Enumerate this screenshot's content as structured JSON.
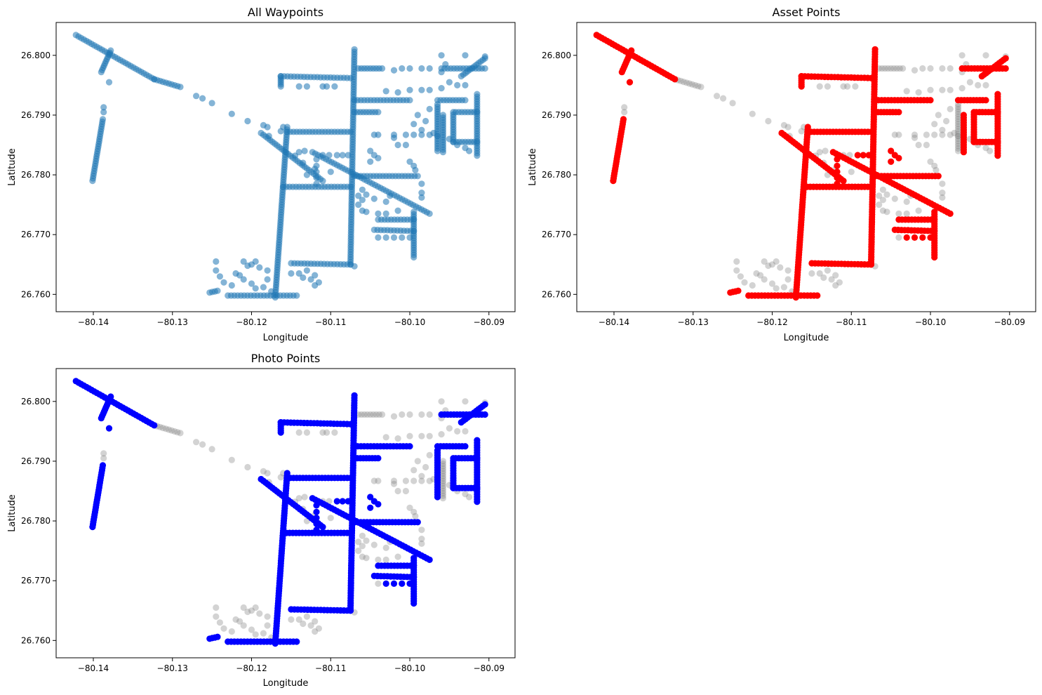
{
  "figure": {
    "panels": [
      {
        "id": "all-waypoints",
        "title": "All Waypoints",
        "xlabel": "Longitude",
        "ylabel": "Latitude",
        "highlight_color": "#1f77b4",
        "highlight_alpha": 0.55,
        "mode": "all"
      },
      {
        "id": "asset-points",
        "title": "Asset Points",
        "xlabel": "Longitude",
        "ylabel": "Latitude",
        "highlight_color": "#ff0000",
        "highlight_alpha": 1.0,
        "mode": "asset"
      },
      {
        "id": "photo-points",
        "title": "Photo Points",
        "xlabel": "Longitude",
        "ylabel": "Latitude",
        "highlight_color": "#0000ff",
        "highlight_alpha": 1.0,
        "mode": "photo"
      }
    ],
    "background_color": "#808080",
    "background_alpha": 0.35
  },
  "chart_data": {
    "type": "scatter",
    "xlim": [
      -80.1447,
      -80.0867
    ],
    "ylim": [
      26.7571,
      26.8055
    ],
    "x_ticks": [
      -80.14,
      -80.13,
      -80.12,
      -80.11,
      -80.1,
      -80.09
    ],
    "x_tick_labels": [
      "−80.14",
      "−80.13",
      "−80.12",
      "−80.11",
      "−80.10",
      "−80.09"
    ],
    "y_ticks": [
      26.76,
      26.77,
      26.78,
      26.79,
      26.8
    ],
    "y_tick_labels": [
      "26.760",
      "26.770",
      "26.780",
      "26.790",
      "26.800"
    ],
    "grid": false,
    "segments": [
      {
        "from": [
          -80.1422,
          26.8034
        ],
        "to": [
          -80.1323,
          26.796
        ],
        "asset": true,
        "photo": true
      },
      {
        "from": [
          -80.1323,
          26.796
        ],
        "to": [
          -80.129,
          26.7947
        ],
        "asset": false,
        "photo": false
      },
      {
        "from": [
          -80.1378,
          26.8008
        ],
        "to": [
          -80.139,
          26.7972
        ],
        "asset": true,
        "photo": true
      },
      {
        "from": [
          -80.1388,
          26.7893
        ],
        "to": [
          -80.1401,
          26.779
        ],
        "asset": true,
        "photo": true
      },
      {
        "from": [
          -80.1188,
          26.787
        ],
        "to": [
          -80.111,
          26.779
        ],
        "asset": true,
        "photo": true
      },
      {
        "from": [
          -80.117,
          26.7595
        ],
        "to": [
          -80.1155,
          26.788
        ],
        "asset": true,
        "photo": true
      },
      {
        "from": [
          -80.1155,
          26.7872
        ],
        "to": [
          -80.1075,
          26.7872
        ],
        "asset": true,
        "photo": true
      },
      {
        "from": [
          -80.116,
          26.778
        ],
        "to": [
          -80.1075,
          26.778
        ],
        "asset": true,
        "photo": true
      },
      {
        "from": [
          -80.1163,
          26.7965
        ],
        "to": [
          -80.1075,
          26.7962
        ],
        "asset": true,
        "photo": true
      },
      {
        "from": [
          -80.1163,
          26.7965
        ],
        "to": [
          -80.1163,
          26.7948
        ],
        "asset": true,
        "photo": true
      },
      {
        "from": [
          -80.1075,
          26.765
        ],
        "to": [
          -80.107,
          26.801
        ],
        "asset": true,
        "photo": true
      },
      {
        "from": [
          -80.115,
          26.7652
        ],
        "to": [
          -80.1075,
          26.765
        ],
        "asset": true,
        "photo": true
      },
      {
        "from": [
          -80.123,
          26.7598
        ],
        "to": [
          -80.1143,
          26.7598
        ],
        "asset": true,
        "photo": true
      },
      {
        "from": [
          -80.1253,
          26.7603
        ],
        "to": [
          -80.1243,
          26.7606
        ],
        "asset": true,
        "photo": true
      },
      {
        "from": [
          -80.1123,
          26.7838
        ],
        "to": [
          -80.0975,
          26.7735
        ],
        "asset": true,
        "photo": true
      },
      {
        "from": [
          -80.107,
          26.7925
        ],
        "to": [
          -80.1,
          26.7925
        ],
        "asset": true,
        "photo": true
      },
      {
        "from": [
          -80.107,
          26.7905
        ],
        "to": [
          -80.104,
          26.7905
        ],
        "asset": true,
        "photo": true
      },
      {
        "from": [
          -80.107,
          26.7798
        ],
        "to": [
          -80.099,
          26.7798
        ],
        "asset": true,
        "photo": true
      },
      {
        "from": [
          -80.104,
          26.7725
        ],
        "to": [
          -80.0995,
          26.7725
        ],
        "asset": true,
        "photo": true
      },
      {
        "from": [
          -80.0995,
          26.7738
        ],
        "to": [
          -80.0995,
          26.7662
        ],
        "asset": true,
        "photo": true
      },
      {
        "from": [
          -80.1045,
          26.7708
        ],
        "to": [
          -80.0995,
          26.7706
        ],
        "asset": true,
        "photo": true
      },
      {
        "from": [
          -80.096,
          26.7978
        ],
        "to": [
          -80.0905,
          26.7978
        ],
        "asset": true,
        "photo": true
      },
      {
        "from": [
          -80.0935,
          26.7965
        ],
        "to": [
          -80.0905,
          26.7995
        ],
        "asset": true,
        "photo": true
      },
      {
        "from": [
          -80.0915,
          26.7935
        ],
        "to": [
          -80.0915,
          26.7832
        ],
        "asset": true,
        "photo": true
      },
      {
        "from": [
          -80.0965,
          26.7925
        ],
        "to": [
          -80.093,
          26.7925
        ],
        "asset": true,
        "photo": true
      },
      {
        "from": [
          -80.0958,
          26.79
        ],
        "to": [
          -80.0958,
          26.7838
        ],
        "asset": true,
        "photo": false
      },
      {
        "from": [
          -80.0942,
          26.7905
        ],
        "to": [
          -80.0915,
          26.7905
        ],
        "asset": true,
        "photo": true
      },
      {
        "from": [
          -80.0945,
          26.7855
        ],
        "to": [
          -80.0915,
          26.7855
        ],
        "asset": true,
        "photo": true
      },
      {
        "from": [
          -80.0945,
          26.7905
        ],
        "to": [
          -80.0945,
          26.7855
        ],
        "asset": true,
        "photo": true
      },
      {
        "from": [
          -80.0965,
          26.7918
        ],
        "to": [
          -80.0965,
          26.784
        ],
        "asset": false,
        "photo": true
      },
      {
        "from": [
          -80.1065,
          26.7978
        ],
        "to": [
          -80.1035,
          26.7978
        ],
        "asset": false,
        "photo": false
      }
    ],
    "scatter_points": [
      [
        -80.138,
        26.7955,
        1,
        1
      ],
      [
        -80.1387,
        26.7913,
        0,
        0
      ],
      [
        -80.1387,
        26.7905,
        0,
        0
      ],
      [
        -80.127,
        26.7932,
        0,
        0
      ],
      [
        -80.1262,
        26.7928,
        0,
        0
      ],
      [
        -80.125,
        26.792,
        0,
        0
      ],
      [
        -80.1225,
        26.7902,
        0,
        0
      ],
      [
        -80.1205,
        26.789,
        0,
        0
      ],
      [
        -80.1185,
        26.7883,
        0,
        0
      ],
      [
        -80.118,
        26.788,
        0,
        0
      ],
      [
        -80.1178,
        26.7865,
        0,
        0
      ],
      [
        -80.1163,
        26.7873,
        0,
        0
      ],
      [
        -80.116,
        26.788,
        0,
        0
      ],
      [
        -80.1145,
        26.7832,
        0,
        0
      ],
      [
        -80.114,
        26.7838,
        0,
        0
      ],
      [
        -80.1133,
        26.784,
        0,
        0
      ],
      [
        -80.1135,
        26.782,
        0,
        0
      ],
      [
        -80.113,
        26.78,
        0,
        0
      ],
      [
        -80.1118,
        26.7826,
        1,
        1
      ],
      [
        -80.1118,
        26.7815,
        1,
        1
      ],
      [
        -80.1118,
        26.7805,
        1,
        1
      ],
      [
        -80.1118,
        26.7795,
        1,
        1
      ],
      [
        -80.1118,
        26.7785,
        1,
        1
      ],
      [
        -80.111,
        26.7833,
        0,
        0
      ],
      [
        -80.1102,
        26.7833,
        0,
        0
      ],
      [
        -80.1092,
        26.7833,
        1,
        1
      ],
      [
        -80.1085,
        26.7833,
        1,
        1
      ],
      [
        -80.1078,
        26.7833,
        1,
        1
      ],
      [
        -80.112,
        26.781,
        0,
        0
      ],
      [
        -80.11,
        26.7805,
        0,
        0
      ],
      [
        -80.105,
        26.784,
        1,
        1
      ],
      [
        -80.1045,
        26.7833,
        1,
        1
      ],
      [
        -80.104,
        26.7828,
        1,
        1
      ],
      [
        -80.105,
        26.7822,
        1,
        1
      ],
      [
        -80.1065,
        26.7765,
        0,
        0
      ],
      [
        -80.106,
        26.7758,
        0,
        0
      ],
      [
        -80.106,
        26.7775,
        0,
        0
      ],
      [
        -80.1055,
        26.7767,
        0,
        0
      ],
      [
        -80.1045,
        26.776,
        0,
        0
      ],
      [
        -80.103,
        26.7755,
        0,
        0
      ],
      [
        -80.1025,
        26.7765,
        0,
        0
      ],
      [
        -80.106,
        26.774,
        0,
        0
      ],
      [
        -80.1055,
        26.7738,
        0,
        0
      ],
      [
        -80.104,
        26.7735,
        0,
        0
      ],
      [
        -80.103,
        26.7735,
        0,
        0
      ],
      [
        -80.1015,
        26.774,
        0,
        0
      ],
      [
        -80.1065,
        26.775,
        0,
        0
      ],
      [
        -80.1,
        26.7822,
        0,
        0
      ],
      [
        -80.0995,
        26.7815,
        0,
        0
      ],
      [
        -80.0993,
        26.7808,
        0,
        0
      ],
      [
        -80.0985,
        26.7785,
        0,
        0
      ],
      [
        -80.0985,
        26.777,
        0,
        0
      ],
      [
        -80.0985,
        26.7762,
        0,
        0
      ],
      [
        -80.103,
        26.7695,
        1,
        1
      ],
      [
        -80.102,
        26.7695,
        1,
        1
      ],
      [
        -80.101,
        26.7695,
        1,
        1
      ],
      [
        -80.1,
        26.7695,
        1,
        1
      ],
      [
        -80.104,
        26.7695,
        0,
        0
      ],
      [
        -80.107,
        26.7647,
        0,
        0
      ],
      [
        -80.1045,
        26.7867,
        0,
        0
      ],
      [
        -80.104,
        26.7867,
        0,
        0
      ],
      [
        -80.102,
        26.7867,
        0,
        0
      ],
      [
        -80.1005,
        26.7867,
        0,
        0
      ],
      [
        -80.0995,
        26.7867,
        0,
        0
      ],
      [
        -80.0985,
        26.7867,
        0,
        0
      ],
      [
        -80.0975,
        26.7867,
        0,
        0
      ],
      [
        -80.1015,
        26.785,
        0,
        0
      ],
      [
        -80.1005,
        26.785,
        0,
        0
      ],
      [
        -80.102,
        26.7862,
        0,
        0
      ],
      [
        -80.103,
        26.794,
        0,
        0
      ],
      [
        -80.1015,
        26.7938,
        0,
        0
      ],
      [
        -80.1,
        26.7942,
        0,
        0
      ],
      [
        -80.0985,
        26.7942,
        0,
        0
      ],
      [
        -80.0975,
        26.7942,
        0,
        0
      ],
      [
        -80.096,
        26.7945,
        0,
        0
      ],
      [
        -80.102,
        26.7975,
        0,
        0
      ],
      [
        -80.101,
        26.7978,
        0,
        0
      ],
      [
        -80.1,
        26.7978,
        0,
        0
      ],
      [
        -80.0985,
        26.7978,
        0,
        0
      ],
      [
        -80.0975,
        26.7978,
        0,
        0
      ],
      [
        -80.0955,
        26.7985,
        0,
        0
      ],
      [
        -80.096,
        26.7972,
        0,
        0
      ],
      [
        -80.095,
        26.7955,
        0,
        0
      ],
      [
        -80.094,
        26.795,
        0,
        0
      ],
      [
        -80.093,
        26.795,
        0,
        0
      ],
      [
        -80.099,
        26.79,
        0,
        0
      ],
      [
        -80.0995,
        26.7885,
        0,
        0
      ],
      [
        -80.0985,
        26.7875,
        0,
        0
      ],
      [
        -80.098,
        26.789,
        0,
        0
      ],
      [
        -80.0975,
        26.791,
        0,
        0
      ],
      [
        -80.097,
        26.787,
        0,
        0
      ],
      [
        -80.0965,
        26.7865,
        0,
        0
      ],
      [
        -80.095,
        26.786,
        0,
        0
      ],
      [
        -80.094,
        26.785,
        0,
        0
      ],
      [
        -80.093,
        26.7845,
        0,
        0
      ],
      [
        -80.0925,
        26.784,
        0,
        0
      ],
      [
        -80.096,
        26.8,
        0,
        0
      ],
      [
        -80.093,
        26.8,
        0,
        0
      ],
      [
        -80.0905,
        26.7998,
        0,
        0
      ],
      [
        -80.114,
        26.7948,
        0,
        0
      ],
      [
        -80.113,
        26.7948,
        0,
        0
      ],
      [
        -80.1105,
        26.7948,
        0,
        0
      ],
      [
        -80.1095,
        26.7948,
        0,
        0
      ],
      [
        -80.111,
        26.7948,
        0,
        0
      ],
      [
        -80.1245,
        26.7655,
        0,
        0
      ],
      [
        -80.1245,
        26.764,
        0,
        0
      ],
      [
        -80.124,
        26.763,
        0,
        0
      ],
      [
        -80.1235,
        26.762,
        0,
        0
      ],
      [
        -80.1225,
        26.7615,
        0,
        0
      ],
      [
        -80.122,
        26.7635,
        0,
        0
      ],
      [
        -80.1215,
        26.7632,
        0,
        0
      ],
      [
        -80.121,
        26.7625,
        0,
        0
      ],
      [
        -80.12,
        26.7618,
        0,
        0
      ],
      [
        -80.1195,
        26.761,
        0,
        0
      ],
      [
        -80.121,
        26.7655,
        0,
        0
      ],
      [
        -80.1205,
        26.7648,
        0,
        0
      ],
      [
        -80.12,
        26.765,
        0,
        0
      ],
      [
        -80.1195,
        26.7655,
        0,
        0
      ],
      [
        -80.119,
        26.7645,
        0,
        0
      ],
      [
        -80.118,
        26.764,
        0,
        0
      ],
      [
        -80.118,
        26.7625,
        0,
        0
      ],
      [
        -80.1185,
        26.7612,
        0,
        0
      ],
      [
        -80.1175,
        26.7605,
        0,
        0
      ],
      [
        -80.115,
        26.7635,
        0,
        0
      ],
      [
        -80.114,
        26.7635,
        0,
        0
      ],
      [
        -80.1135,
        26.7628,
        0,
        0
      ],
      [
        -80.113,
        26.764,
        0,
        0
      ],
      [
        -80.1125,
        26.7625,
        0,
        0
      ],
      [
        -80.112,
        26.7615,
        0,
        0
      ],
      [
        -80.1115,
        26.762,
        0,
        0
      ],
      [
        -80.112,
        26.7632,
        0,
        0
      ]
    ]
  }
}
